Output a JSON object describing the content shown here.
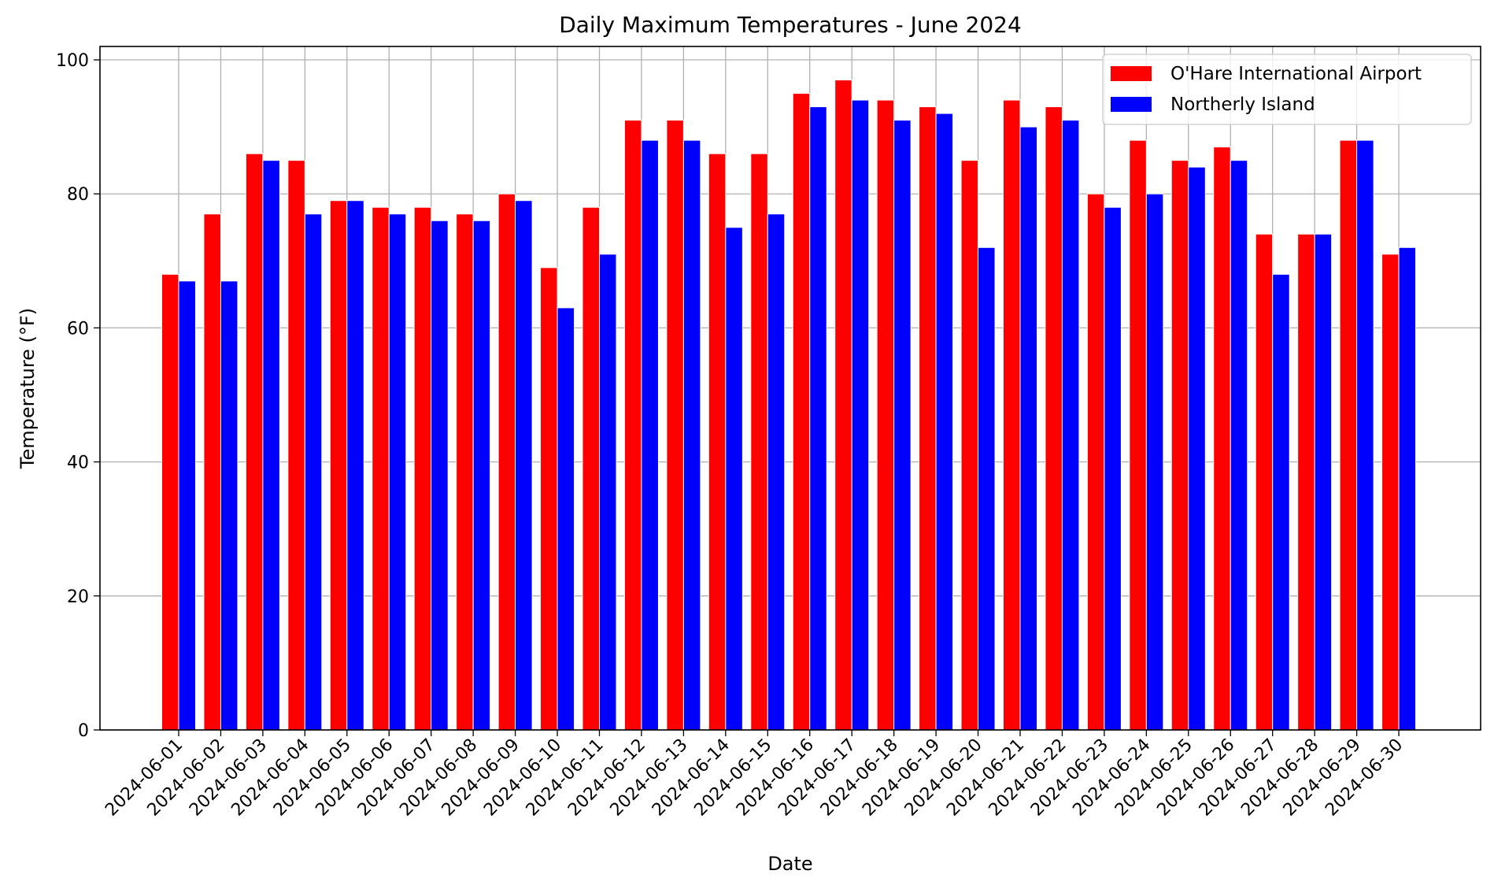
{
  "chart_data": {
    "type": "bar",
    "title": "Daily Maximum Temperatures - June 2024",
    "xlabel": "Date",
    "ylabel": "Temperature (°F)",
    "ylim": [
      0,
      102
    ],
    "yticks": [
      0,
      20,
      40,
      60,
      80,
      100
    ],
    "grid": true,
    "legend_position": "top-right",
    "categories": [
      "2024-06-01",
      "2024-06-02",
      "2024-06-03",
      "2024-06-04",
      "2024-06-05",
      "2024-06-06",
      "2024-06-07",
      "2024-06-08",
      "2024-06-09",
      "2024-06-10",
      "2024-06-11",
      "2024-06-12",
      "2024-06-13",
      "2024-06-14",
      "2024-06-15",
      "2024-06-16",
      "2024-06-17",
      "2024-06-18",
      "2024-06-19",
      "2024-06-20",
      "2024-06-21",
      "2024-06-22",
      "2024-06-23",
      "2024-06-24",
      "2024-06-25",
      "2024-06-26",
      "2024-06-27",
      "2024-06-28",
      "2024-06-29",
      "2024-06-30"
    ],
    "series": [
      {
        "name": "O'Hare International Airport",
        "color": "#ff0000",
        "values": [
          68,
          77,
          86,
          85,
          79,
          78,
          78,
          77,
          80,
          69,
          78,
          91,
          91,
          86,
          86,
          95,
          97,
          94,
          93,
          85,
          94,
          93,
          80,
          88,
          85,
          87,
          74,
          74,
          88,
          71
        ]
      },
      {
        "name": "Northerly Island",
        "color": "#0000ff",
        "values": [
          67,
          67,
          85,
          77,
          79,
          77,
          76,
          76,
          79,
          63,
          71,
          88,
          88,
          75,
          77,
          93,
          94,
          91,
          92,
          72,
          90,
          91,
          78,
          80,
          84,
          85,
          68,
          74,
          88,
          72
        ]
      }
    ]
  }
}
